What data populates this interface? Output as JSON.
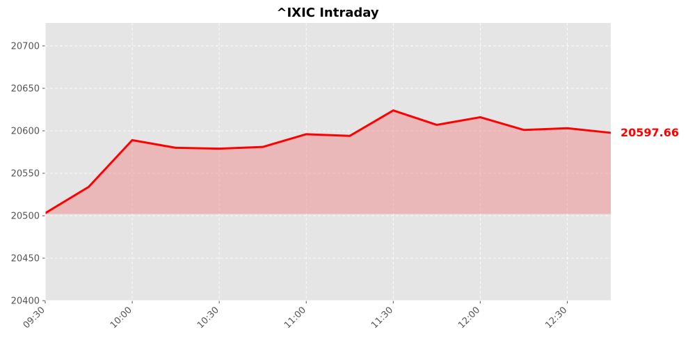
{
  "chart_data": {
    "type": "area",
    "title": "^IXIC Intraday",
    "xlabel": "",
    "ylabel": "",
    "x": [
      "09:30",
      "09:45",
      "10:00",
      "10:15",
      "10:30",
      "10:45",
      "11:00",
      "11:15",
      "11:30",
      "11:45",
      "12:00",
      "12:15",
      "12:30",
      "12:45"
    ],
    "values": [
      20503,
      20534,
      20589,
      20580,
      20579,
      20581,
      20596,
      20594,
      20624,
      20607,
      20616,
      20601,
      20603,
      20597.66
    ],
    "x_ticks": [
      "09:30",
      "10:00",
      "10:30",
      "11:00",
      "11:30",
      "12:00",
      "12:30"
    ],
    "y_ticks": [
      20400,
      20450,
      20500,
      20550,
      20600,
      20650,
      20700
    ],
    "ylim": [
      20400,
      20727
    ],
    "fill_baseline": 20502,
    "last_value_label": "20597.66",
    "grid": true,
    "colors": {
      "line": "#ff0000",
      "fill": "#f08080",
      "plot_background": "#e5e5e5",
      "grid": "#ffffff"
    }
  }
}
